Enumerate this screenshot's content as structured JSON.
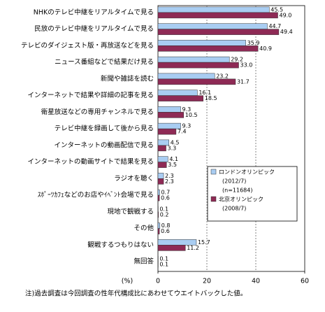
{
  "chart_data": {
    "type": "bar",
    "orientation": "horizontal",
    "categories": [
      "NHKのテレビ中継をリアルタイムで見る",
      "民放のテレビ中継をリアルタイムで見る",
      "テレビのダイジェスト版・再放送などを見る",
      "ニュース番組などで結果だけ見る",
      "新聞や雑誌を読む",
      "インターネットで結果や詳細の記事を見る",
      "衛星放送などの専用チャンネルで見る",
      "テレビ中継を録画して後から見る",
      "インターネットの動画配信で見る",
      "インターネットの動画サイトで結果を見る",
      "ラジオを聴く",
      "ｽﾎﾟｰﾂｶﾌｪなどのお店やｲﾍﾞﾝﾄ会場で見る",
      "現地で観戦する",
      "その他",
      "観戦するつもりはない",
      "無回答"
    ],
    "series": [
      {
        "name": "ロンドンオリンピック",
        "details": [
          "(2012/7)",
          "(n=11684)"
        ],
        "color": "#a9cdf2",
        "values": [
          45.5,
          44.7,
          35.9,
          29.2,
          23.2,
          16.1,
          9.3,
          9.3,
          4.5,
          4.1,
          2.3,
          0.7,
          0.1,
          0.8,
          15.7,
          0.1
        ],
        "value_labels": [
          "45.5",
          "44.7",
          "35.9",
          "29.2",
          "23.2",
          "16.1",
          "9.3",
          "9.3",
          "4.5",
          "4.1",
          "2.3",
          "0.7",
          "0.1",
          "0.8",
          "15.7",
          "0.1"
        ]
      },
      {
        "name": "北京オリンピック",
        "details": [
          "(2008/7)"
        ],
        "color": "#8e2a55",
        "values": [
          49.0,
          49.4,
          40.9,
          33.0,
          31.7,
          18.5,
          10.5,
          7.4,
          3.3,
          3.5,
          2.3,
          0.6,
          0.2,
          0.6,
          11.2,
          0.1
        ],
        "value_labels": [
          "49.0",
          "49.4",
          "40.9",
          "33.0",
          "31.7",
          "18.5",
          "10.5",
          "7.4",
          "3.3",
          "3.5",
          "2.3",
          "0.6",
          "0.2",
          "0.6",
          "11.2",
          "0.1"
        ]
      }
    ],
    "xlim": [
      0,
      60
    ],
    "xticks": [
      0,
      20,
      40,
      60
    ],
    "grid": true,
    "x_label": "(%)",
    "note": "注)過去調査は今回調査の性年代構成比にあわせてウエイトバックした値。",
    "legend": "lower right"
  }
}
